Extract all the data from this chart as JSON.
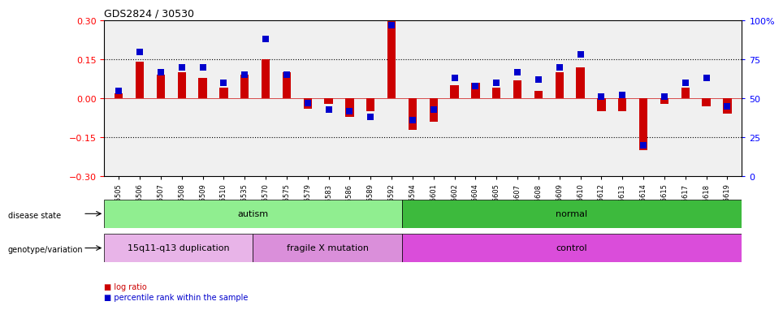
{
  "title": "GDS2824 / 30530",
  "samples": [
    "GSM176505",
    "GSM176506",
    "GSM176507",
    "GSM176508",
    "GSM176509",
    "GSM176510",
    "GSM176535",
    "GSM176570",
    "GSM176575",
    "GSM176579",
    "GSM176583",
    "GSM176586",
    "GSM176589",
    "GSM176592",
    "GSM176594",
    "GSM176601",
    "GSM176602",
    "GSM176604",
    "GSM176605",
    "GSM176607",
    "GSM176608",
    "GSM176609",
    "GSM176610",
    "GSM176612",
    "GSM176613",
    "GSM176614",
    "GSM176615",
    "GSM176617",
    "GSM176618",
    "GSM176619"
  ],
  "log_ratio": [
    0.02,
    0.14,
    0.09,
    0.1,
    0.08,
    0.04,
    0.09,
    0.15,
    0.1,
    -0.04,
    -0.02,
    -0.07,
    -0.05,
    0.3,
    -0.12,
    -0.09,
    0.05,
    0.06,
    0.04,
    0.07,
    0.03,
    0.1,
    0.12,
    -0.05,
    -0.05,
    -0.2,
    -0.02,
    0.04,
    -0.03,
    -0.06
  ],
  "percentile_rank": [
    55,
    80,
    67,
    70,
    70,
    60,
    65,
    88,
    65,
    47,
    43,
    42,
    38,
    97,
    36,
    43,
    63,
    58,
    60,
    67,
    62,
    70,
    78,
    51,
    52,
    20,
    51,
    60,
    63,
    45
  ],
  "disease_state_groups": [
    {
      "label": "autism",
      "start": 0,
      "end": 14,
      "color": "#90ee90"
    },
    {
      "label": "normal",
      "start": 14,
      "end": 30,
      "color": "#3dba3d"
    }
  ],
  "genotype_groups": [
    {
      "label": "15q11-q13 duplication",
      "start": 0,
      "end": 7,
      "color": "#e8b4e8"
    },
    {
      "label": "fragile X mutation",
      "start": 7,
      "end": 14,
      "color": "#da8fda"
    },
    {
      "label": "control",
      "start": 14,
      "end": 30,
      "color": "#da4dda"
    }
  ],
  "ylim": [
    -0.3,
    0.3
  ],
  "y2lim": [
    0,
    100
  ],
  "yticks": [
    -0.3,
    -0.15,
    0.0,
    0.15,
    0.3
  ],
  "y2ticks": [
    0,
    25,
    50,
    75,
    100
  ],
  "y2ticklabels": [
    "0",
    "25",
    "50",
    "75",
    "100%"
  ],
  "hlines": [
    0.15,
    -0.15
  ],
  "bar_color": "#cc0000",
  "dot_color": "#0000cc",
  "bar_width": 0.4,
  "dot_size": 35
}
